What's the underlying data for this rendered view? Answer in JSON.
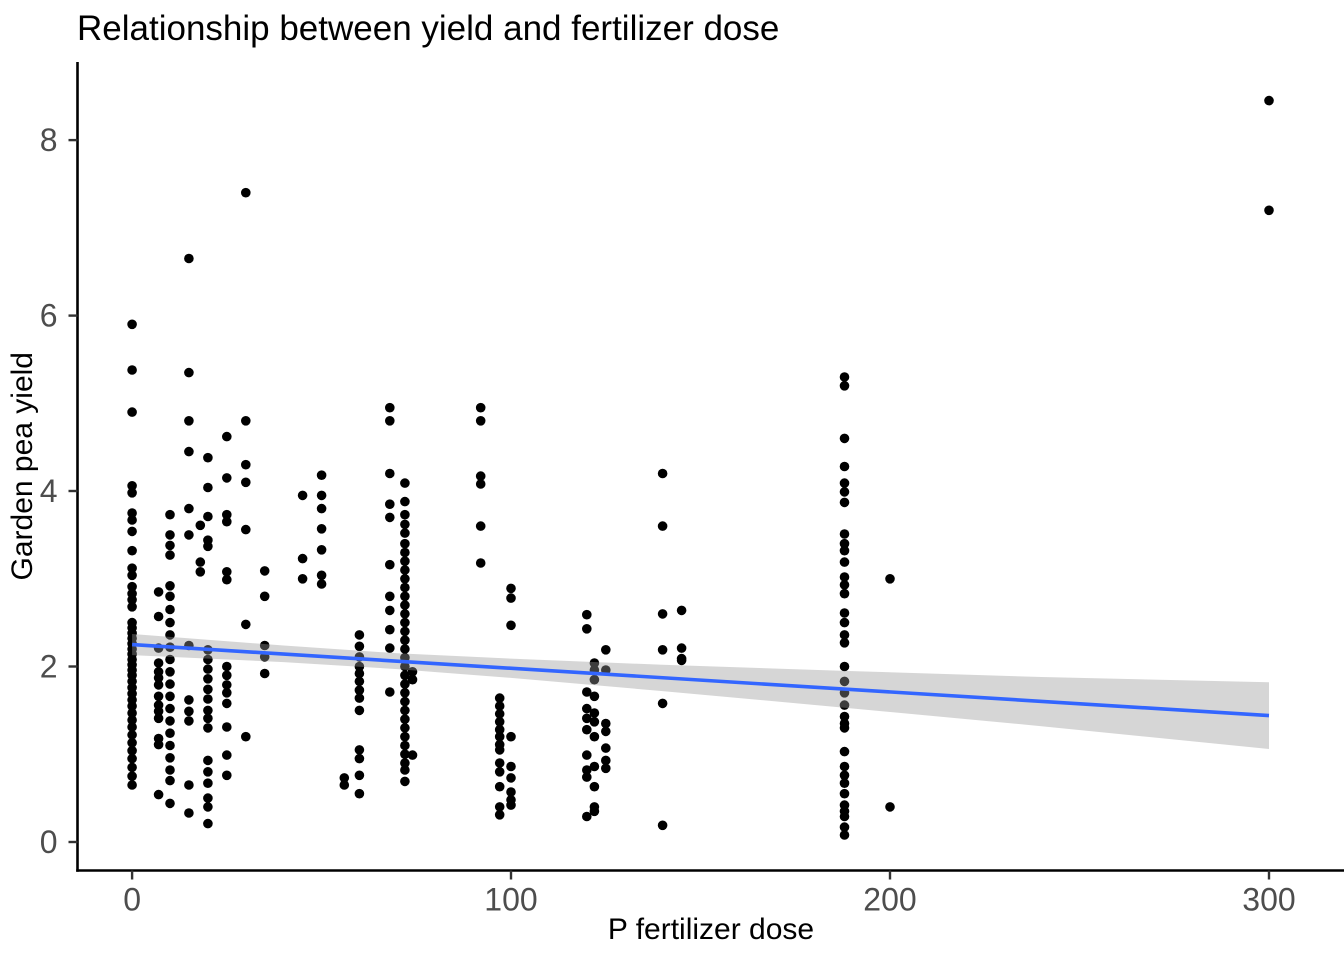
{
  "chart_data": {
    "type": "scatter",
    "title": "Relationship between yield and fertilizer dose",
    "xlabel": "P fertilizer dose",
    "ylabel": "Garden pea yield",
    "x_ticks": [
      0,
      100,
      200,
      300
    ],
    "y_ticks": [
      0,
      2,
      4,
      6,
      8
    ],
    "xlim": [
      -14.4,
      319.8
    ],
    "ylim": [
      -0.325,
      8.89
    ],
    "grid": false,
    "legend": "none",
    "point_color": "#000000",
    "point_radius": 4.8,
    "trend_line_color": "#3366FF",
    "trend_line_width": 3.6,
    "ci_band_color": "rgba(153,153,153,0.4)",
    "axis_line_color": "#000000",
    "tick_color": "#333333",
    "axis_text_color": "#4D4D4D",
    "tick_font_size": 32,
    "trend_line": {
      "x": [
        0,
        300
      ],
      "y": [
        2.25,
        1.44
      ]
    },
    "ci_band": {
      "x": [
        0,
        40,
        70,
        100,
        140,
        188,
        240,
        300
      ],
      "upper": [
        2.37,
        2.24,
        2.15,
        2.09,
        2.02,
        1.95,
        1.88,
        1.82
      ],
      "lower": [
        2.13,
        2.05,
        1.97,
        1.87,
        1.72,
        1.53,
        1.32,
        1.06
      ]
    },
    "points": [
      [
        0,
        5.9
      ],
      [
        0,
        5.38
      ],
      [
        0,
        4.9
      ],
      [
        0,
        4.06
      ],
      [
        0,
        3.98
      ],
      [
        0,
        3.75
      ],
      [
        0,
        3.67
      ],
      [
        0,
        3.54
      ],
      [
        0,
        3.32
      ],
      [
        0,
        3.12
      ],
      [
        0,
        3.04
      ],
      [
        0,
        2.91
      ],
      [
        0,
        2.83
      ],
      [
        0,
        2.76
      ],
      [
        0,
        2.68
      ],
      [
        0,
        2.5
      ],
      [
        0,
        2.44
      ],
      [
        0,
        2.38
      ],
      [
        0,
        2.32
      ],
      [
        0,
        2.26
      ],
      [
        0,
        2.2
      ],
      [
        0,
        2.14
      ],
      [
        0,
        2.08
      ],
      [
        0,
        2.02
      ],
      [
        0,
        1.96
      ],
      [
        0,
        1.9
      ],
      [
        0,
        1.83
      ],
      [
        0,
        1.76
      ],
      [
        0,
        1.69
      ],
      [
        0,
        1.62
      ],
      [
        0,
        1.55
      ],
      [
        0,
        1.47
      ],
      [
        0,
        1.39
      ],
      [
        0,
        1.31
      ],
      [
        0,
        1.22
      ],
      [
        0,
        1.13
      ],
      [
        0,
        1.04
      ],
      [
        0,
        0.95
      ],
      [
        0,
        0.85
      ],
      [
        0,
        0.75
      ],
      [
        0,
        0.65
      ],
      [
        7,
        2.85
      ],
      [
        7,
        2.57
      ],
      [
        7,
        2.21
      ],
      [
        7,
        2.04
      ],
      [
        7,
        1.94
      ],
      [
        7,
        1.87
      ],
      [
        7,
        1.79
      ],
      [
        7,
        1.66
      ],
      [
        7,
        1.56
      ],
      [
        7,
        1.49
      ],
      [
        7,
        1.41
      ],
      [
        7,
        1.18
      ],
      [
        7,
        1.11
      ],
      [
        7,
        0.54
      ],
      [
        10,
        3.73
      ],
      [
        10,
        3.5
      ],
      [
        10,
        3.38
      ],
      [
        10,
        3.27
      ],
      [
        10,
        2.92
      ],
      [
        10,
        2.8
      ],
      [
        10,
        2.65
      ],
      [
        10,
        2.5
      ],
      [
        10,
        2.36
      ],
      [
        10,
        2.22
      ],
      [
        10,
        2.08
      ],
      [
        10,
        1.94
      ],
      [
        10,
        1.8
      ],
      [
        10,
        1.66
      ],
      [
        10,
        1.52
      ],
      [
        10,
        1.38
      ],
      [
        10,
        1.24
      ],
      [
        10,
        1.1
      ],
      [
        10,
        0.96
      ],
      [
        10,
        0.82
      ],
      [
        10,
        0.7
      ],
      [
        10,
        0.44
      ],
      [
        15,
        6.65
      ],
      [
        15,
        5.35
      ],
      [
        15,
        4.8
      ],
      [
        15,
        4.45
      ],
      [
        15,
        3.8
      ],
      [
        15,
        3.5
      ],
      [
        15,
        2.24
      ],
      [
        15,
        1.62
      ],
      [
        15,
        1.49
      ],
      [
        15,
        1.38
      ],
      [
        15,
        0.65
      ],
      [
        15,
        0.33
      ],
      [
        18,
        3.61
      ],
      [
        18,
        3.19
      ],
      [
        18,
        3.08
      ],
      [
        20,
        4.38
      ],
      [
        20,
        4.04
      ],
      [
        20,
        3.71
      ],
      [
        20,
        3.44
      ],
      [
        20,
        3.37
      ],
      [
        20,
        2.19
      ],
      [
        20,
        2.08
      ],
      [
        20,
        1.97
      ],
      [
        20,
        1.86
      ],
      [
        20,
        1.74
      ],
      [
        20,
        1.63
      ],
      [
        20,
        1.5
      ],
      [
        20,
        1.41
      ],
      [
        20,
        1.3
      ],
      [
        20,
        0.93
      ],
      [
        20,
        0.8
      ],
      [
        20,
        0.67
      ],
      [
        20,
        0.5
      ],
      [
        20,
        0.4
      ],
      [
        20,
        0.21
      ],
      [
        25,
        4.62
      ],
      [
        25,
        4.15
      ],
      [
        25,
        3.73
      ],
      [
        25,
        3.65
      ],
      [
        25,
        3.08
      ],
      [
        25,
        2.99
      ],
      [
        25,
        2.0
      ],
      [
        25,
        1.9
      ],
      [
        25,
        1.79
      ],
      [
        25,
        1.7
      ],
      [
        25,
        1.58
      ],
      [
        25,
        1.31
      ],
      [
        25,
        0.99
      ],
      [
        25,
        0.76
      ],
      [
        30,
        7.4
      ],
      [
        30,
        4.8
      ],
      [
        30,
        4.3
      ],
      [
        30,
        4.1
      ],
      [
        30,
        3.56
      ],
      [
        30,
        2.48
      ],
      [
        30,
        1.2
      ],
      [
        35,
        3.09
      ],
      [
        35,
        2.8
      ],
      [
        35,
        2.24
      ],
      [
        35,
        2.11
      ],
      [
        35,
        1.92
      ],
      [
        45,
        3.95
      ],
      [
        45,
        3.23
      ],
      [
        45,
        3.0
      ],
      [
        50,
        4.18
      ],
      [
        50,
        3.95
      ],
      [
        50,
        3.8
      ],
      [
        50,
        3.57
      ],
      [
        50,
        3.33
      ],
      [
        50,
        3.04
      ],
      [
        50,
        2.94
      ],
      [
        56,
        0.73
      ],
      [
        56,
        0.65
      ],
      [
        60,
        2.36
      ],
      [
        60,
        2.23
      ],
      [
        60,
        2.11
      ],
      [
        60,
        2.0
      ],
      [
        60,
        1.92
      ],
      [
        60,
        1.83
      ],
      [
        60,
        1.73
      ],
      [
        60,
        1.64
      ],
      [
        60,
        1.5
      ],
      [
        60,
        1.05
      ],
      [
        60,
        0.95
      ],
      [
        60,
        0.76
      ],
      [
        60,
        0.55
      ],
      [
        68,
        4.95
      ],
      [
        68,
        4.8
      ],
      [
        68,
        4.2
      ],
      [
        68,
        3.85
      ],
      [
        68,
        3.7
      ],
      [
        68,
        3.16
      ],
      [
        68,
        2.8
      ],
      [
        68,
        2.64
      ],
      [
        68,
        2.42
      ],
      [
        68,
        2.21
      ],
      [
        68,
        1.71
      ],
      [
        72,
        4.09
      ],
      [
        72,
        3.88
      ],
      [
        72,
        3.73
      ],
      [
        72,
        3.62
      ],
      [
        72,
        3.52
      ],
      [
        72,
        3.4
      ],
      [
        72,
        3.3
      ],
      [
        72,
        3.2
      ],
      [
        72,
        3.1
      ],
      [
        72,
        3.0
      ],
      [
        72,
        2.9
      ],
      [
        72,
        2.8
      ],
      [
        72,
        2.7
      ],
      [
        72,
        2.6
      ],
      [
        72,
        2.5
      ],
      [
        72,
        2.4
      ],
      [
        72,
        2.3
      ],
      [
        72,
        2.2
      ],
      [
        72,
        2.1
      ],
      [
        72,
        2.0
      ],
      [
        72,
        1.9
      ],
      [
        72,
        1.8
      ],
      [
        72,
        1.7
      ],
      [
        72,
        1.6
      ],
      [
        72,
        1.5
      ],
      [
        72,
        1.4
      ],
      [
        72,
        1.3
      ],
      [
        72,
        1.2
      ],
      [
        72,
        1.1
      ],
      [
        72,
        1.0
      ],
      [
        72,
        0.9
      ],
      [
        72,
        0.82
      ],
      [
        72,
        0.69
      ],
      [
        74,
        1.94
      ],
      [
        74,
        1.85
      ],
      [
        74,
        0.99
      ],
      [
        92,
        4.95
      ],
      [
        92,
        4.8
      ],
      [
        92,
        4.17
      ],
      [
        92,
        4.08
      ],
      [
        92,
        3.6
      ],
      [
        92,
        3.18
      ],
      [
        97,
        1.64
      ],
      [
        97,
        1.55
      ],
      [
        97,
        1.46
      ],
      [
        97,
        1.37
      ],
      [
        97,
        1.28
      ],
      [
        97,
        1.2
      ],
      [
        97,
        1.11
      ],
      [
        97,
        1.05
      ],
      [
        97,
        0.9
      ],
      [
        97,
        0.8
      ],
      [
        97,
        0.63
      ],
      [
        97,
        0.4
      ],
      [
        97,
        0.31
      ],
      [
        100,
        2.89
      ],
      [
        100,
        2.78
      ],
      [
        100,
        2.47
      ],
      [
        100,
        1.2
      ],
      [
        100,
        0.86
      ],
      [
        100,
        0.73
      ],
      [
        100,
        0.57
      ],
      [
        100,
        0.48
      ],
      [
        100,
        0.42
      ],
      [
        120,
        2.59
      ],
      [
        120,
        2.43
      ],
      [
        120,
        1.71
      ],
      [
        120,
        1.52
      ],
      [
        120,
        1.41
      ],
      [
        120,
        1.28
      ],
      [
        120,
        0.99
      ],
      [
        120,
        0.82
      ],
      [
        120,
        0.74
      ],
      [
        120,
        0.29
      ],
      [
        122,
        2.04
      ],
      [
        122,
        1.96
      ],
      [
        122,
        1.85
      ],
      [
        122,
        1.66
      ],
      [
        122,
        1.47
      ],
      [
        122,
        1.37
      ],
      [
        122,
        1.2
      ],
      [
        122,
        0.86
      ],
      [
        122,
        0.63
      ],
      [
        122,
        0.4
      ],
      [
        122,
        0.35
      ],
      [
        125,
        2.19
      ],
      [
        125,
        1.96
      ],
      [
        125,
        1.35
      ],
      [
        125,
        1.26
      ],
      [
        125,
        1.07
      ],
      [
        125,
        0.93
      ],
      [
        125,
        0.84
      ],
      [
        140,
        4.2
      ],
      [
        140,
        3.6
      ],
      [
        140,
        2.6
      ],
      [
        140,
        2.19
      ],
      [
        140,
        1.58
      ],
      [
        140,
        0.19
      ],
      [
        145,
        2.64
      ],
      [
        145,
        2.21
      ],
      [
        145,
        2.09
      ],
      [
        145,
        2.07
      ],
      [
        188,
        5.3
      ],
      [
        188,
        5.2
      ],
      [
        188,
        4.6
      ],
      [
        188,
        4.28
      ],
      [
        188,
        4.09
      ],
      [
        188,
        3.99
      ],
      [
        188,
        3.87
      ],
      [
        188,
        3.51
      ],
      [
        188,
        3.4
      ],
      [
        188,
        3.32
      ],
      [
        188,
        3.19
      ],
      [
        188,
        3.02
      ],
      [
        188,
        2.93
      ],
      [
        188,
        2.83
      ],
      [
        188,
        2.61
      ],
      [
        188,
        2.5
      ],
      [
        188,
        2.36
      ],
      [
        188,
        2.27
      ],
      [
        188,
        2.0
      ],
      [
        188,
        1.83
      ],
      [
        188,
        1.7
      ],
      [
        188,
        1.56
      ],
      [
        188,
        1.43
      ],
      [
        188,
        1.35
      ],
      [
        188,
        1.3
      ],
      [
        188,
        1.03
      ],
      [
        188,
        0.86
      ],
      [
        188,
        0.76
      ],
      [
        188,
        0.67
      ],
      [
        188,
        0.55
      ],
      [
        188,
        0.42
      ],
      [
        188,
        0.35
      ],
      [
        188,
        0.29
      ],
      [
        188,
        0.17
      ],
      [
        188,
        0.08
      ],
      [
        200,
        3.0
      ],
      [
        200,
        0.4
      ],
      [
        300,
        8.45
      ],
      [
        300,
        7.2
      ]
    ]
  }
}
